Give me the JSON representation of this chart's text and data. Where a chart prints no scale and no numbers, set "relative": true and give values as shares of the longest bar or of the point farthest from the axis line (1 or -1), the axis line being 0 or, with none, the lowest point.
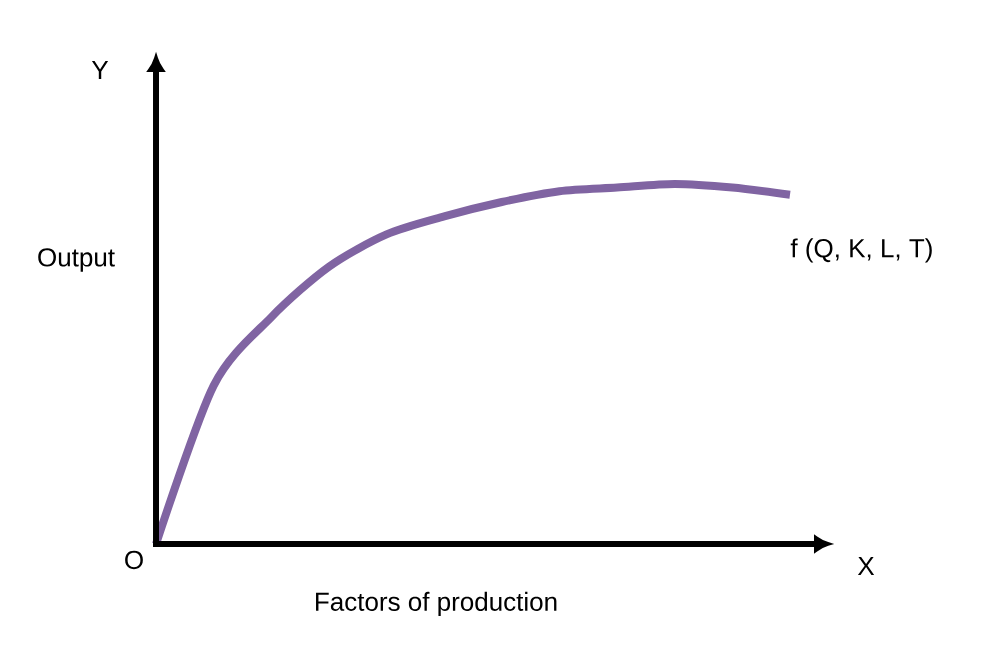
{
  "chart_data": {
    "type": "line",
    "relative": true,
    "xlabel": "Factors of production",
    "ylabel": "Output",
    "annotations": [
      "Y",
      "X",
      "O"
    ],
    "categories": [
      null,
      null,
      null,
      null,
      null,
      null,
      null,
      null,
      null,
      null,
      null,
      null
    ],
    "series": [
      {
        "name": "f (Q, K, L, T)",
        "color": "#8064a2",
        "values": [
          0,
          0.44,
          0.63,
          0.77,
          0.86,
          0.91,
          0.95,
          0.98,
          0.99,
          1,
          0.99,
          0.97
        ]
      }
    ],
    "legend": false,
    "marker": "none",
    "line_style": "solid"
  }
}
